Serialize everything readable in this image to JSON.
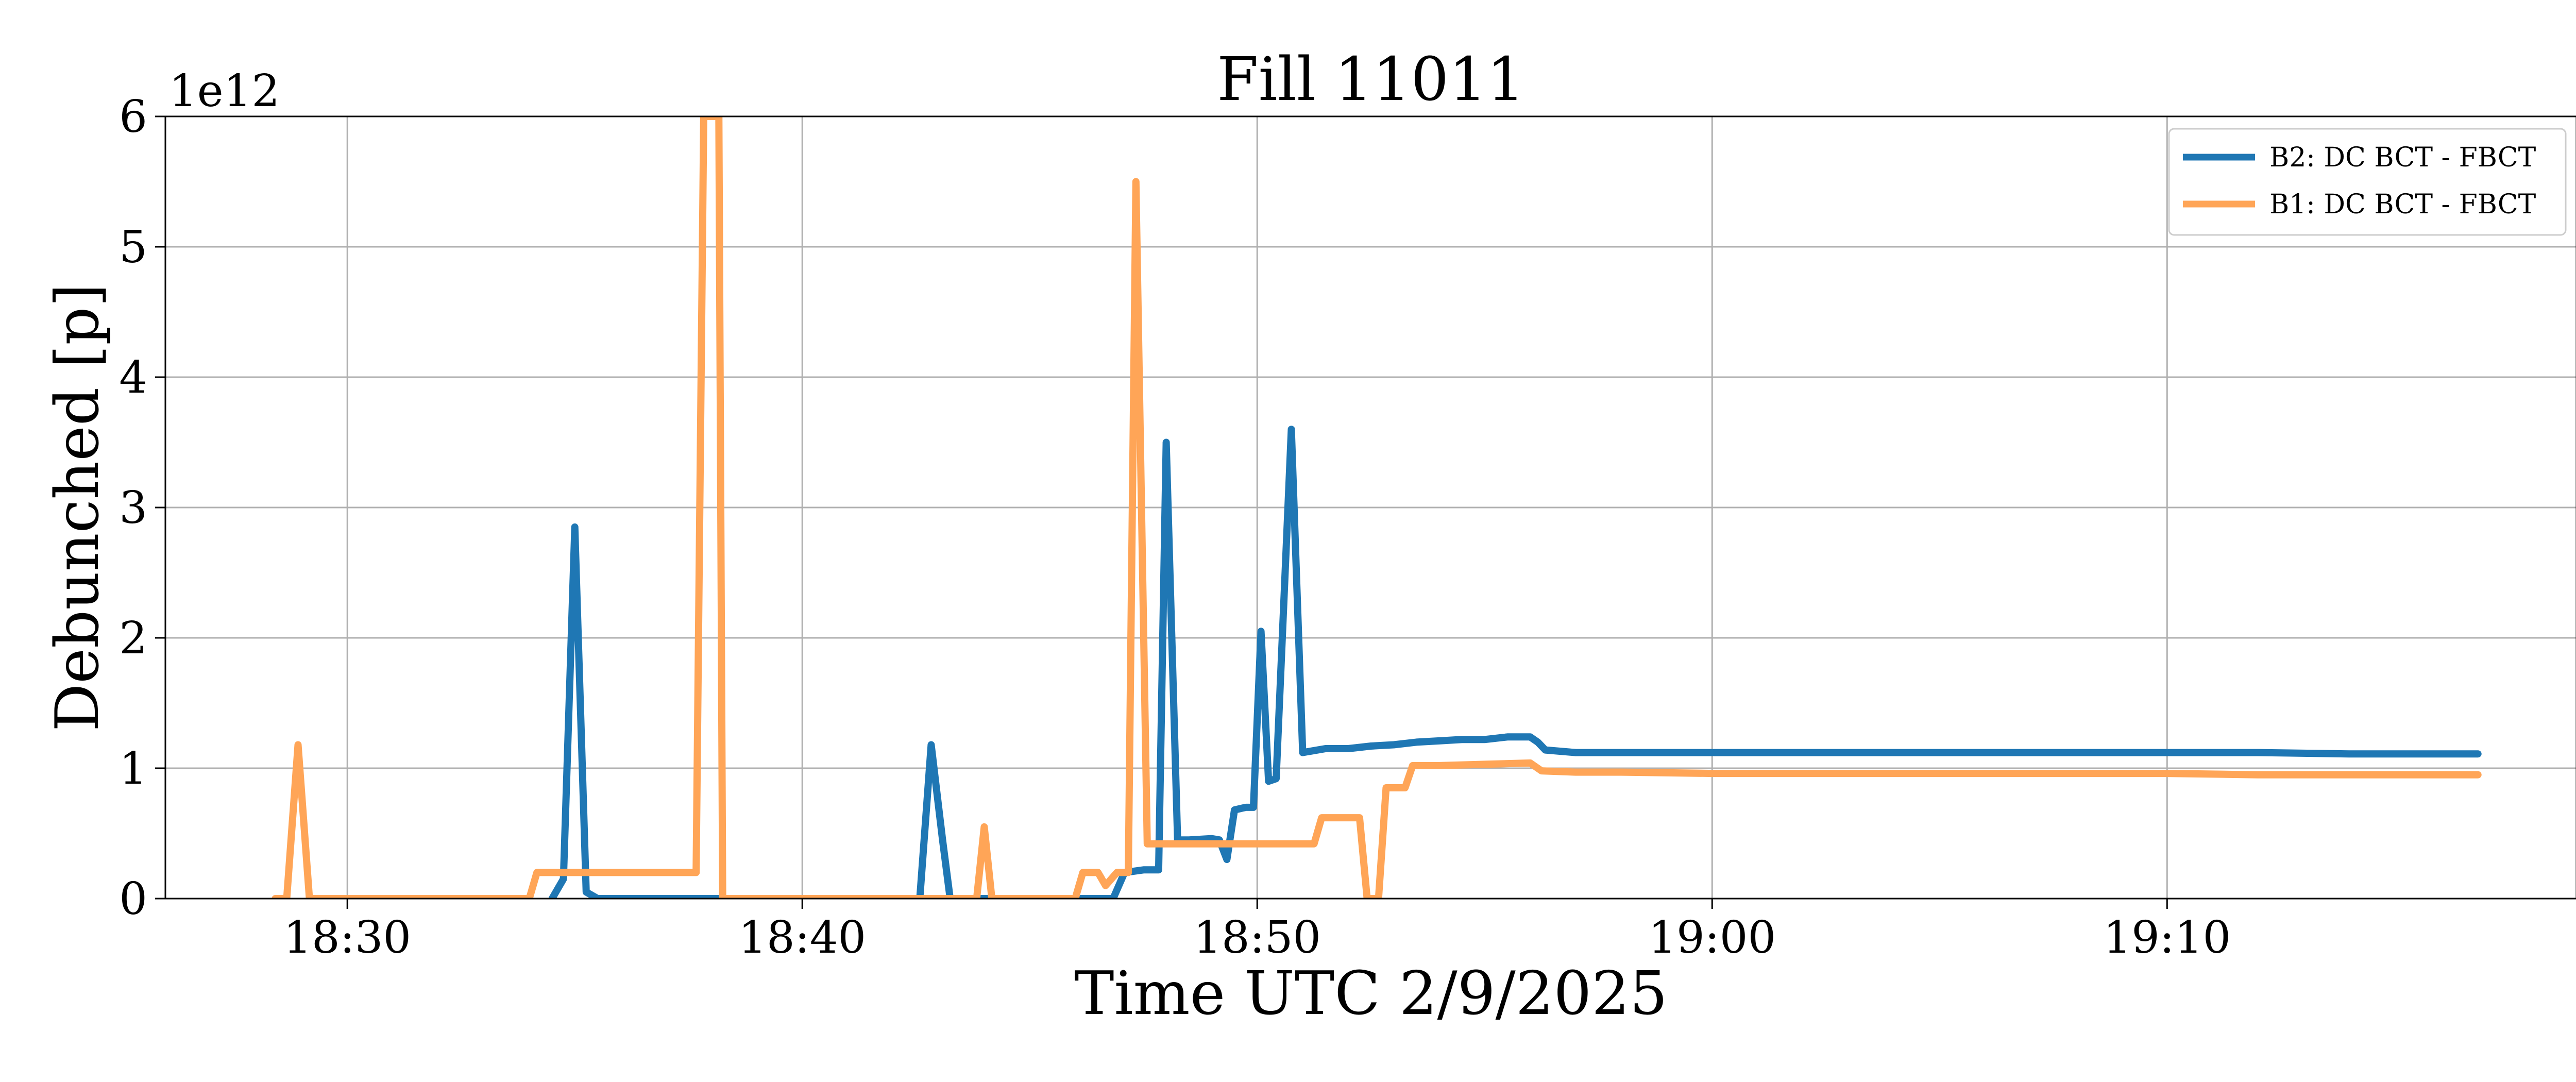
{
  "chart_data": {
    "type": "line",
    "title": "Fill 11011",
    "xlabel": "Time UTC 2/9/2025",
    "ylabel": "Debunched [p]",
    "y_offset_label": "1e12",
    "y_scale": 1000000000000,
    "xlim": [
      "18:26:00",
      "19:19:00"
    ],
    "ylim": [
      0,
      6
    ],
    "x_ticks": [
      "18:30",
      "18:40",
      "18:50",
      "19:00",
      "19:10"
    ],
    "y_ticks": [
      "0",
      "1",
      "2",
      "3",
      "4",
      "5",
      "6"
    ],
    "grid": true,
    "legend_position": "top-right",
    "series": [
      {
        "name": "B2: DC BCT - FBCT",
        "color": "#1f77b4",
        "points": [
          [
            "18:34:30",
            0
          ],
          [
            "18:34:45",
            0.15
          ],
          [
            "18:35:00",
            2.85
          ],
          [
            "18:35:15",
            0.05
          ],
          [
            "18:35:30",
            0
          ],
          [
            "18:42:35",
            0
          ],
          [
            "18:42:50",
            1.18
          ],
          [
            "18:43:05",
            0.45
          ],
          [
            "18:43:15",
            0
          ],
          [
            "18:46:50",
            0
          ],
          [
            "18:47:05",
            0.2
          ],
          [
            "18:47:30",
            0.22
          ],
          [
            "18:47:50",
            0.22
          ],
          [
            "18:48:00",
            3.5
          ],
          [
            "18:48:15",
            0.45
          ],
          [
            "18:48:30",
            0.45
          ],
          [
            "18:49:00",
            0.46
          ],
          [
            "18:49:10",
            0.45
          ],
          [
            "18:49:20",
            0.3
          ],
          [
            "18:49:30",
            0.68
          ],
          [
            "18:49:45",
            0.7
          ],
          [
            "18:49:55",
            0.7
          ],
          [
            "18:50:05",
            2.05
          ],
          [
            "18:50:15",
            0.9
          ],
          [
            "18:50:25",
            0.92
          ],
          [
            "18:50:45",
            3.6
          ],
          [
            "18:51:00",
            1.12
          ],
          [
            "18:51:30",
            1.15
          ],
          [
            "18:52:00",
            1.15
          ],
          [
            "18:52:30",
            1.17
          ],
          [
            "18:53:00",
            1.18
          ],
          [
            "18:53:30",
            1.2
          ],
          [
            "18:54:00",
            1.21
          ],
          [
            "18:54:30",
            1.22
          ],
          [
            "18:55:00",
            1.22
          ],
          [
            "18:55:30",
            1.24
          ],
          [
            "18:56:00",
            1.24
          ],
          [
            "18:56:10",
            1.2
          ],
          [
            "18:56:20",
            1.14
          ],
          [
            "18:57:00",
            1.12
          ],
          [
            "18:58:00",
            1.12
          ],
          [
            "18:59:00",
            1.12
          ],
          [
            "19:00:00",
            1.12
          ],
          [
            "19:02:00",
            1.12
          ],
          [
            "19:04:00",
            1.12
          ],
          [
            "19:06:00",
            1.12
          ],
          [
            "19:08:00",
            1.12
          ],
          [
            "19:10:00",
            1.12
          ],
          [
            "19:12:00",
            1.12
          ],
          [
            "19:14:00",
            1.11
          ],
          [
            "19:16:00",
            1.11
          ],
          [
            "19:16:50",
            1.11
          ]
        ]
      },
      {
        "name": "B1: DC BCT - FBCT",
        "color": "#ffa557",
        "points": [
          [
            "18:28:25",
            0
          ],
          [
            "18:28:40",
            0
          ],
          [
            "18:28:55",
            1.18
          ],
          [
            "18:29:10",
            0
          ],
          [
            "18:29:20",
            0
          ],
          [
            "18:34:00",
            0
          ],
          [
            "18:34:10",
            0.2
          ],
          [
            "18:36:00",
            0.2
          ],
          [
            "18:37:40",
            0.2
          ],
          [
            "18:37:50",
            6.0
          ],
          [
            "18:38:00",
            6.0
          ],
          [
            "18:38:10",
            6.0
          ],
          [
            "18:38:15",
            0
          ],
          [
            "18:43:50",
            0
          ],
          [
            "18:44:00",
            0.55
          ],
          [
            "18:44:10",
            0
          ],
          [
            "18:46:00",
            0
          ],
          [
            "18:46:10",
            0.2
          ],
          [
            "18:46:30",
            0.2
          ],
          [
            "18:46:40",
            0.1
          ],
          [
            "18:46:55",
            0.2
          ],
          [
            "18:47:10",
            0.2
          ],
          [
            "18:47:20",
            5.5
          ],
          [
            "18:47:35",
            0.42
          ],
          [
            "18:48:30",
            0.42
          ],
          [
            "18:49:30",
            0.42
          ],
          [
            "18:50:30",
            0.42
          ],
          [
            "18:51:15",
            0.42
          ],
          [
            "18:51:25",
            0.62
          ],
          [
            "18:52:15",
            0.62
          ],
          [
            "18:52:25",
            0
          ],
          [
            "18:52:40",
            0
          ],
          [
            "18:52:50",
            0.85
          ],
          [
            "18:53:15",
            0.85
          ],
          [
            "18:53:25",
            1.02
          ],
          [
            "18:54:00",
            1.02
          ],
          [
            "18:55:00",
            1.03
          ],
          [
            "18:56:00",
            1.04
          ],
          [
            "18:56:15",
            0.98
          ],
          [
            "18:57:00",
            0.97
          ],
          [
            "18:58:00",
            0.97
          ],
          [
            "19:00:00",
            0.96
          ],
          [
            "19:02:00",
            0.96
          ],
          [
            "19:04:00",
            0.96
          ],
          [
            "19:06:00",
            0.96
          ],
          [
            "19:08:00",
            0.96
          ],
          [
            "19:10:00",
            0.96
          ],
          [
            "19:12:00",
            0.95
          ],
          [
            "19:14:00",
            0.95
          ],
          [
            "19:16:00",
            0.95
          ],
          [
            "19:16:50",
            0.95
          ]
        ]
      }
    ]
  }
}
